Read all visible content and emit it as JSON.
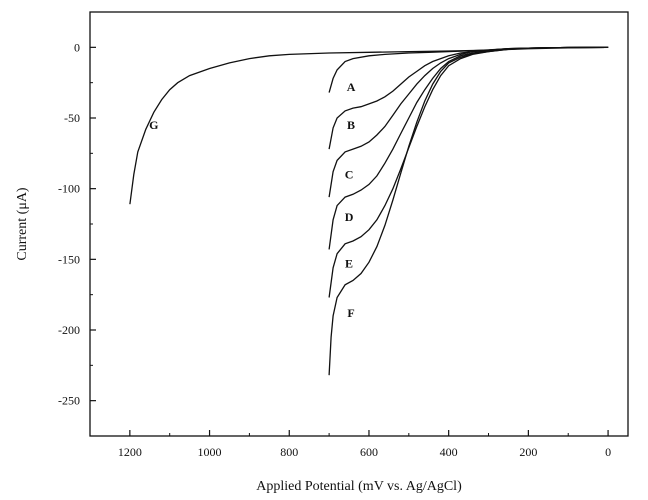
{
  "chart_data": {
    "type": "line",
    "title": "",
    "xlabel": "Applied Potential (mV vs. Ag/AgCl)",
    "ylabel": "Current (μA)",
    "xlim": [
      1300,
      -50
    ],
    "ylim": [
      -275,
      25
    ],
    "x_reversed": true,
    "x_ticks": [
      1200,
      1000,
      800,
      600,
      400,
      200,
      0
    ],
    "y_ticks": [
      0,
      -50,
      -100,
      -150,
      -200,
      -250
    ],
    "grid": false,
    "legend": "none",
    "line_color": "#111111",
    "series": [
      {
        "name": "A",
        "label_at": [
          645,
          -28
        ],
        "points": [
          [
            700,
            -32
          ],
          [
            690,
            -22
          ],
          [
            680,
            -16
          ],
          [
            660,
            -10
          ],
          [
            640,
            -8
          ],
          [
            600,
            -6
          ],
          [
            560,
            -5
          ],
          [
            500,
            -4
          ],
          [
            450,
            -3.5
          ],
          [
            400,
            -3
          ],
          [
            350,
            -2.5
          ],
          [
            300,
            -1.8
          ],
          [
            250,
            -1
          ],
          [
            200,
            -0.6
          ],
          [
            150,
            -0.3
          ],
          [
            100,
            -0.1
          ],
          [
            0,
            0
          ]
        ]
      },
      {
        "name": "B",
        "label_at": [
          645,
          -55
        ],
        "points": [
          [
            700,
            -72
          ],
          [
            690,
            -57
          ],
          [
            680,
            -50
          ],
          [
            660,
            -45
          ],
          [
            640,
            -43
          ],
          [
            620,
            -42
          ],
          [
            600,
            -40
          ],
          [
            580,
            -38
          ],
          [
            560,
            -35
          ],
          [
            540,
            -31
          ],
          [
            520,
            -26
          ],
          [
            500,
            -21
          ],
          [
            480,
            -17
          ],
          [
            460,
            -13
          ],
          [
            440,
            -10
          ],
          [
            420,
            -8
          ],
          [
            400,
            -6
          ],
          [
            370,
            -4
          ],
          [
            340,
            -3
          ],
          [
            300,
            -2
          ],
          [
            250,
            -1
          ],
          [
            200,
            -0.6
          ],
          [
            100,
            -0.1
          ],
          [
            0,
            0
          ]
        ]
      },
      {
        "name": "C",
        "label_at": [
          650,
          -90
        ],
        "points": [
          [
            700,
            -106
          ],
          [
            690,
            -88
          ],
          [
            680,
            -80
          ],
          [
            660,
            -74
          ],
          [
            640,
            -72
          ],
          [
            620,
            -70
          ],
          [
            600,
            -67
          ],
          [
            580,
            -62
          ],
          [
            560,
            -56
          ],
          [
            540,
            -48
          ],
          [
            520,
            -40
          ],
          [
            500,
            -33
          ],
          [
            480,
            -26
          ],
          [
            460,
            -20
          ],
          [
            440,
            -15
          ],
          [
            420,
            -11
          ],
          [
            400,
            -8
          ],
          [
            370,
            -5
          ],
          [
            340,
            -3
          ],
          [
            300,
            -2
          ],
          [
            250,
            -1
          ],
          [
            200,
            -0.6
          ],
          [
            100,
            -0.1
          ],
          [
            0,
            0
          ]
        ]
      },
      {
        "name": "D",
        "label_at": [
          650,
          -120
        ],
        "points": [
          [
            700,
            -143
          ],
          [
            690,
            -122
          ],
          [
            680,
            -112
          ],
          [
            660,
            -106
          ],
          [
            640,
            -104
          ],
          [
            620,
            -101
          ],
          [
            600,
            -97
          ],
          [
            580,
            -91
          ],
          [
            560,
            -82
          ],
          [
            540,
            -72
          ],
          [
            520,
            -61
          ],
          [
            500,
            -50
          ],
          [
            480,
            -39
          ],
          [
            460,
            -30
          ],
          [
            440,
            -22
          ],
          [
            420,
            -15
          ],
          [
            400,
            -10
          ],
          [
            370,
            -6
          ],
          [
            340,
            -4
          ],
          [
            300,
            -2.5
          ],
          [
            250,
            -1.2
          ],
          [
            200,
            -0.6
          ],
          [
            100,
            -0.1
          ],
          [
            0,
            0
          ]
        ]
      },
      {
        "name": "E",
        "label_at": [
          650,
          -153
        ],
        "points": [
          [
            700,
            -177
          ],
          [
            690,
            -156
          ],
          [
            680,
            -146
          ],
          [
            660,
            -139
          ],
          [
            640,
            -137
          ],
          [
            620,
            -134
          ],
          [
            600,
            -129
          ],
          [
            580,
            -122
          ],
          [
            560,
            -112
          ],
          [
            540,
            -100
          ],
          [
            520,
            -86
          ],
          [
            500,
            -71
          ],
          [
            480,
            -56
          ],
          [
            460,
            -42
          ],
          [
            440,
            -30
          ],
          [
            420,
            -20
          ],
          [
            400,
            -13
          ],
          [
            370,
            -8
          ],
          [
            340,
            -5
          ],
          [
            300,
            -3
          ],
          [
            250,
            -1.3
          ],
          [
            200,
            -0.6
          ],
          [
            100,
            -0.1
          ],
          [
            0,
            0
          ]
        ]
      },
      {
        "name": "F",
        "label_at": [
          645,
          -188
        ],
        "points": [
          [
            700,
            -232
          ],
          [
            695,
            -205
          ],
          [
            690,
            -190
          ],
          [
            680,
            -177
          ],
          [
            660,
            -168
          ],
          [
            640,
            -165
          ],
          [
            620,
            -160
          ],
          [
            600,
            -152
          ],
          [
            580,
            -141
          ],
          [
            560,
            -126
          ],
          [
            540,
            -108
          ],
          [
            520,
            -89
          ],
          [
            500,
            -70
          ],
          [
            480,
            -53
          ],
          [
            460,
            -38
          ],
          [
            440,
            -26
          ],
          [
            420,
            -17
          ],
          [
            400,
            -11
          ],
          [
            370,
            -7
          ],
          [
            340,
            -4.5
          ],
          [
            300,
            -3
          ],
          [
            250,
            -1.4
          ],
          [
            200,
            -0.6
          ],
          [
            100,
            -0.1
          ],
          [
            0,
            0
          ]
        ]
      },
      {
        "name": "G",
        "label_at": [
          1140,
          -55
        ],
        "points": [
          [
            1200,
            -111
          ],
          [
            1190,
            -90
          ],
          [
            1180,
            -74
          ],
          [
            1160,
            -58
          ],
          [
            1140,
            -46
          ],
          [
            1120,
            -37
          ],
          [
            1100,
            -30
          ],
          [
            1080,
            -25
          ],
          [
            1050,
            -20
          ],
          [
            1000,
            -15
          ],
          [
            950,
            -11
          ],
          [
            900,
            -8
          ],
          [
            850,
            -6
          ],
          [
            800,
            -5
          ],
          [
            700,
            -4
          ],
          [
            600,
            -3.5
          ],
          [
            500,
            -3
          ],
          [
            400,
            -2.6
          ],
          [
            300,
            -2
          ],
          [
            250,
            -1.5
          ],
          [
            200,
            -1
          ],
          [
            100,
            -0.3
          ],
          [
            0,
            0
          ]
        ]
      }
    ]
  }
}
